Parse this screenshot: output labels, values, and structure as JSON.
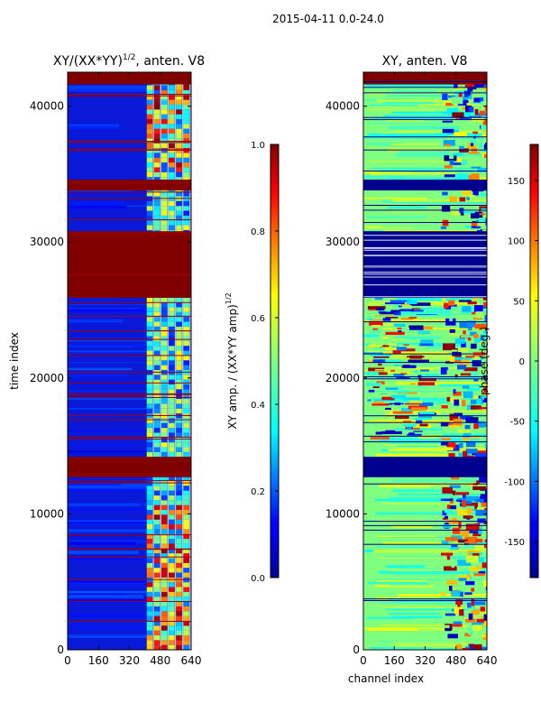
{
  "figure": {
    "suptitle": "2015-04-11 0.0-24.0"
  },
  "chart_data": [
    {
      "type": "heatmap",
      "title": "XY/(XX*YY)",
      "title_sup": "1/2",
      "title_suffix": ", anten. V8",
      "xlabel": "",
      "ylabel": "time index",
      "x_ticks": [
        "0",
        "160",
        "320",
        "480",
        "640"
      ],
      "y_ticks": [
        "0",
        "10000",
        "20000",
        "30000",
        "40000"
      ],
      "xlim": [
        0,
        640
      ],
      "ylim": [
        0,
        42500
      ],
      "colorbar": {
        "label": "XY amp. / (XX*YY amp)",
        "label_sup": "1/2",
        "ticks": [
          "0.0",
          "0.2",
          "0.4",
          "0.6",
          "0.8",
          "1.0"
        ],
        "range": [
          0.0,
          1.0
        ],
        "colormap": "jet"
      },
      "flagged_time_bands": [
        [
          12700,
          14200
        ],
        [
          33800,
          34600
        ],
        [
          25900,
          30800
        ],
        [
          41600,
          42500
        ]
      ],
      "active_channel_range": [
        400,
        640
      ]
    },
    {
      "type": "heatmap",
      "title": "XY, anten. V8",
      "xlabel": "channel index",
      "ylabel": "",
      "x_ticks": [
        "0",
        "160",
        "320",
        "480",
        "640"
      ],
      "y_ticks": [
        "0",
        "10000",
        "20000",
        "30000",
        "40000"
      ],
      "xlim": [
        0,
        640
      ],
      "ylim": [
        0,
        42500
      ],
      "colorbar": {
        "label": "phase (deg.)",
        "ticks": [
          "-150",
          "-100",
          "-50",
          "0",
          "50",
          "100",
          "150"
        ],
        "range": [
          -180,
          180
        ],
        "colormap": "jet"
      },
      "flagged_time_bands": [
        [
          12700,
          14200
        ],
        [
          33800,
          34600
        ],
        [
          25900,
          30800
        ]
      ],
      "active_channel_range": [
        400,
        640
      ]
    }
  ],
  "colors": {
    "jet_dark_blue": "#00008f",
    "jet_blue": "#0000ff",
    "jet_cyan": "#00ffff",
    "jet_green": "#7fff7f",
    "jet_yellow": "#ffff00",
    "jet_red": "#ff0000",
    "jet_dark_red": "#800000"
  }
}
